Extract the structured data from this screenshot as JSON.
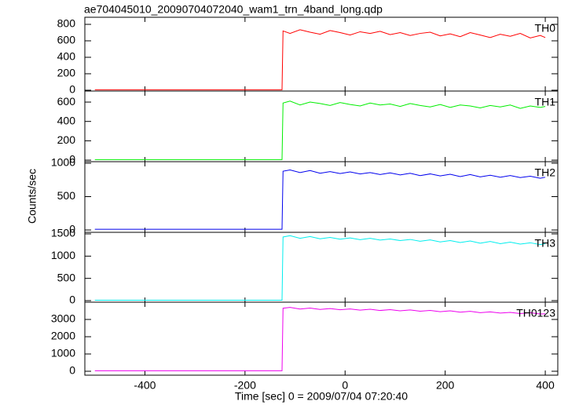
{
  "chart_data": {
    "type": "line",
    "title": "ae704045010_20090704072040_wam1_trn_4band_long.qdp",
    "xlabel": "Time [sec] 0 = 2009/07/04 07:20:40",
    "ylabel": "Counts/sec",
    "xlim": [
      -520,
      425
    ],
    "xticks": [
      -400,
      -200,
      0,
      200,
      400
    ],
    "x": [
      -500,
      -400,
      -300,
      -200,
      -126,
      -124,
      -110,
      -90,
      -70,
      -50,
      -30,
      -10,
      10,
      30,
      50,
      70,
      90,
      110,
      130,
      150,
      170,
      190,
      210,
      230,
      250,
      270,
      290,
      310,
      330,
      350,
      370,
      390,
      400
    ],
    "panels": [
      {
        "ylim": [
          -10,
          886
        ],
        "yticks": [
          0,
          200,
          400,
          600,
          800
        ],
        "series": [
          {
            "name": "TH0",
            "color": "#ff0000",
            "values": [
              5,
              5,
              5,
              5,
              5,
              720,
              690,
              735,
              705,
              680,
              725,
              700,
              670,
              710,
              690,
              715,
              675,
              700,
              665,
              690,
              705,
              660,
              685,
              650,
              700,
              670,
              640,
              680,
              655,
              690,
              635,
              665,
              640
            ]
          }
        ]
      },
      {
        "ylim": [
          -16,
          714
        ],
        "yticks": [
          0,
          200,
          400,
          600
        ],
        "series": [
          {
            "name": "TH1",
            "color": "#00ee00",
            "values": [
              5,
              5,
              5,
              5,
              5,
              590,
              610,
              570,
              600,
              585,
              565,
              595,
              575,
              560,
              590,
              570,
              580,
              555,
              585,
              565,
              550,
              575,
              545,
              570,
              560,
              540,
              565,
              550,
              570,
              535,
              560,
              545,
              555
            ]
          }
        ]
      },
      {
        "ylim": [
          -35,
          1023
        ],
        "yticks": [
          0,
          500,
          1000
        ],
        "series": [
          {
            "name": "TH2",
            "color": "#0000ee",
            "values": [
              10,
              10,
              10,
              10,
              10,
              880,
              900,
              860,
              890,
              850,
              875,
              845,
              870,
              840,
              860,
              830,
              855,
              825,
              850,
              815,
              840,
              810,
              835,
              800,
              830,
              795,
              820,
              790,
              815,
              785,
              805,
              775,
              790
            ]
          }
        ]
      },
      {
        "ylim": [
          -35,
          1535
        ],
        "yticks": [
          0,
          500,
          1000,
          1500
        ],
        "series": [
          {
            "name": "TH3",
            "color": "#00eeee",
            "values": [
              10,
              10,
              10,
              10,
              10,
              1430,
              1460,
              1400,
              1440,
              1390,
              1420,
              1380,
              1410,
              1370,
              1400,
              1360,
              1385,
              1350,
              1375,
              1335,
              1365,
              1320,
              1350,
              1305,
              1340,
              1290,
              1330,
              1280,
              1315,
              1270,
              1300,
              1260,
              1280
            ]
          }
        ]
      },
      {
        "ylim": [
          -227,
          4000
        ],
        "yticks": [
          0,
          1000,
          2000,
          3000
        ],
        "series": [
          {
            "name": "TH0123",
            "color": "#ee00ee",
            "values": [
              30,
              30,
              30,
              30,
              30,
              3650,
              3700,
              3600,
              3660,
              3580,
              3630,
              3560,
              3610,
              3540,
              3590,
              3520,
              3570,
              3500,
              3550,
              3480,
              3520,
              3450,
              3500,
              3420,
              3470,
              3390,
              3440,
              3370,
              3410,
              3340,
              3390,
              3310,
              3330
            ]
          }
        ]
      }
    ]
  }
}
